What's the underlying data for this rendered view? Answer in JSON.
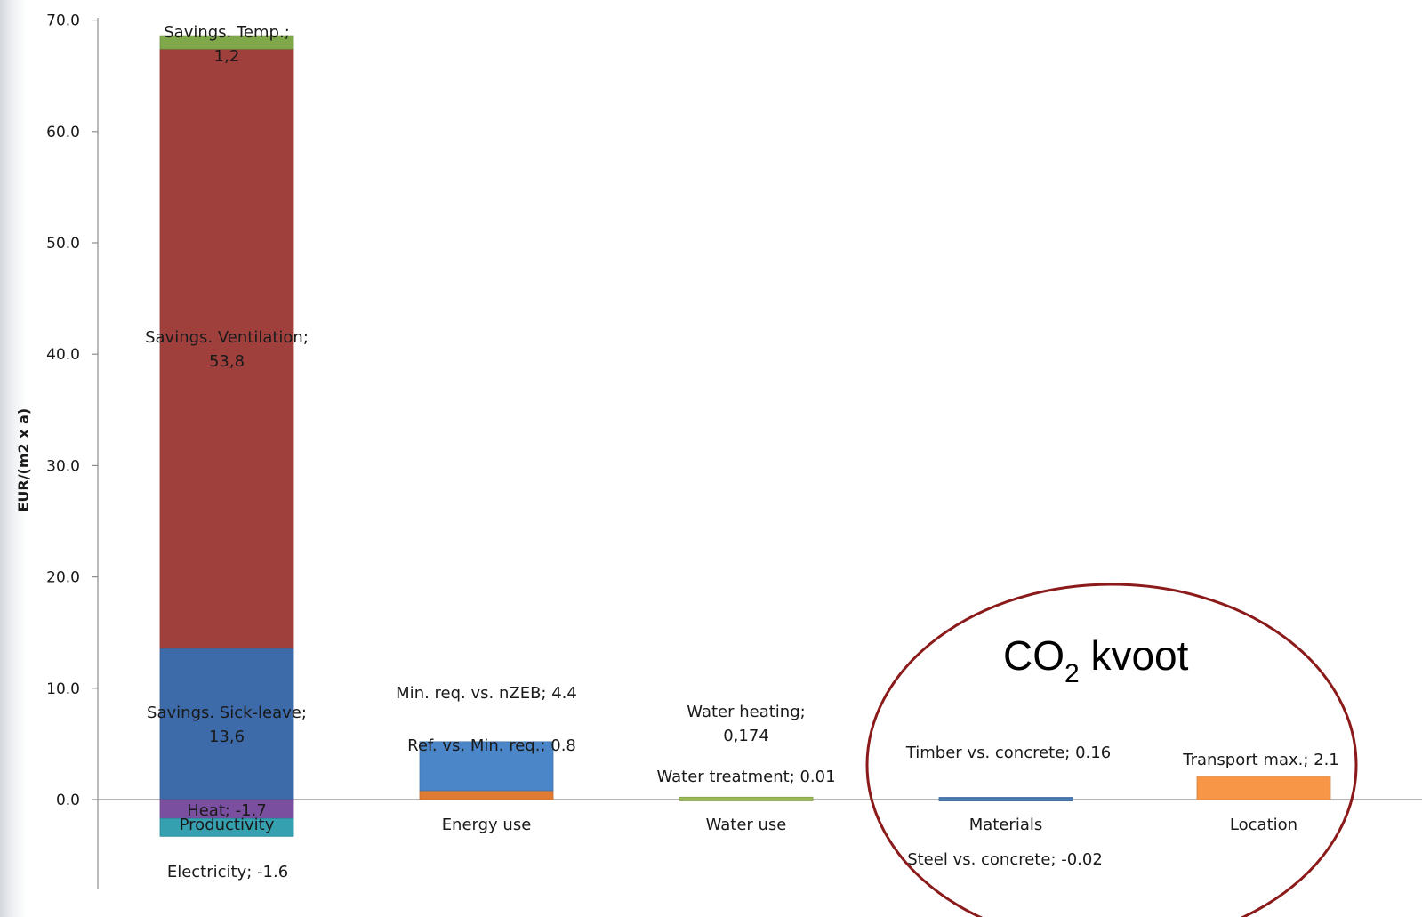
{
  "chart_data": {
    "type": "bar",
    "stacked": true,
    "ylabel": "EUR/(m2 x a)",
    "ylim": [
      -3.5,
      70
    ],
    "yticks": [
      0,
      10,
      20,
      30,
      40,
      50,
      60,
      70
    ],
    "ytick_labels": [
      "0.0",
      "10.0",
      "20.0",
      "30.0",
      "40.0",
      "50.0",
      "60.0",
      "70.0"
    ],
    "categories": [
      "Productivity",
      "Energy use",
      "Water use",
      "Materials",
      "Location"
    ],
    "series": [
      {
        "segments": [
          {
            "category": "Productivity",
            "label_lines": [
              "Savings. Sick-leave;",
              "13,6"
            ],
            "value": 13.6,
            "color": "#3d6aa8"
          },
          {
            "category": "Productivity",
            "label_lines": [
              "Savings. Ventilation;",
              "53,8"
            ],
            "value": 53.8,
            "color": "#a0403d"
          },
          {
            "category": "Productivity",
            "label_lines": [
              "Savings. Temp.;",
              "1,2"
            ],
            "value": 1.2,
            "color": "#7ea84a"
          },
          {
            "category": "Productivity",
            "label_lines": [
              "Heat; -1.7"
            ],
            "value": -1.7,
            "color": "#7a4fa0"
          },
          {
            "category": "Productivity",
            "label_lines": [
              "Electricity; -1.6"
            ],
            "value": -1.6,
            "color": "#34a0b0"
          }
        ]
      },
      {
        "segments": [
          {
            "category": "Energy use",
            "label_lines": [
              "Ref. vs. Min. req.; 0.8"
            ],
            "value": 0.8,
            "color": "#e07b34"
          },
          {
            "category": "Energy use",
            "label_lines": [
              "Min. req. vs. nZEB; 4.4"
            ],
            "value": 4.4,
            "color": "#4a86c8"
          }
        ]
      },
      {
        "segments": [
          {
            "category": "Water use",
            "label_lines": [
              "Water treatment; 0.01"
            ],
            "value": 0.01,
            "color": "#9bbb59"
          },
          {
            "category": "Water use",
            "label_lines": [
              "Water heating;",
              "0,174"
            ],
            "value": 0.174,
            "color": "#9bbb59"
          }
        ]
      },
      {
        "segments": [
          {
            "category": "Materials",
            "label_lines": [
              "Timber vs. concrete; 0.16"
            ],
            "value": 0.16,
            "color": "#4f81bd"
          },
          {
            "category": "Materials",
            "label_lines": [
              "Steel vs. concrete; -0.02"
            ],
            "value": -0.02,
            "color": "#4f81bd"
          }
        ]
      },
      {
        "segments": [
          {
            "category": "Location",
            "label_lines": [
              "Transport max.; 2.1"
            ],
            "value": 2.1,
            "color": "#f79646"
          }
        ]
      }
    ],
    "annotation": {
      "text_main": "CO",
      "text_sub": "2",
      "text_rest": " kvoot",
      "shape": "ellipse",
      "color": "#8b1a1a"
    },
    "grid": false,
    "legend": "none"
  }
}
